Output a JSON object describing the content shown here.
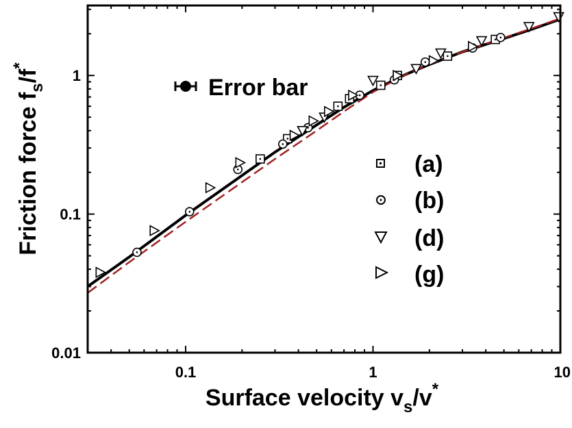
{
  "chart_data": {
    "type": "scatter",
    "x_scale": "log",
    "y_scale": "log",
    "xlim": [
      0.03,
      10
    ],
    "ylim": [
      0.01,
      3.2
    ],
    "x_ticks": [
      {
        "value": 0.1,
        "label": "0.1"
      },
      {
        "value": 1,
        "label": "1"
      },
      {
        "value": 10,
        "label": "10"
      }
    ],
    "y_ticks": [
      {
        "value": 0.01,
        "label": "0.01"
      },
      {
        "value": 0.1,
        "label": "0.1"
      },
      {
        "value": 1,
        "label": "1"
      }
    ],
    "xlabel": {
      "main": "Surface velocity v",
      "sub": "s",
      "mid": "/v",
      "sup": "*"
    },
    "ylabel": {
      "main": "Friction force f",
      "sub": "s",
      "mid": "/f",
      "sup": "*"
    },
    "annotation": {
      "text": "Error bar",
      "x": 0.1,
      "y": 1.0
    },
    "legend": {
      "placement": "right-center",
      "entries": [
        {
          "label": "(a)",
          "marker": "square"
        },
        {
          "label": "(b)",
          "marker": "circle"
        },
        {
          "label": "(d)",
          "marker": "triangle-down"
        },
        {
          "label": "(g)",
          "marker": "triangle-right"
        }
      ]
    },
    "series": [
      {
        "marker": "square",
        "points": [
          [
            0.25,
            0.25
          ],
          [
            0.35,
            0.35
          ],
          [
            0.65,
            0.6
          ],
          [
            0.75,
            0.68
          ],
          [
            1.1,
            0.85
          ],
          [
            1.35,
            1.0
          ],
          [
            2.5,
            1.38
          ],
          [
            4.5,
            1.82
          ]
        ]
      },
      {
        "marker": "circle",
        "points": [
          [
            0.055,
            0.053
          ],
          [
            0.105,
            0.104
          ],
          [
            0.19,
            0.21
          ],
          [
            0.33,
            0.32
          ],
          [
            0.45,
            0.42
          ],
          [
            0.85,
            0.72
          ],
          [
            1.3,
            0.93
          ],
          [
            1.9,
            1.25
          ],
          [
            3.4,
            1.58
          ],
          [
            4.8,
            1.88
          ]
        ]
      },
      {
        "marker": "triangle-down",
        "points": [
          [
            0.42,
            0.4
          ],
          [
            0.55,
            0.5
          ],
          [
            1.0,
            0.92
          ],
          [
            1.7,
            1.12
          ],
          [
            2.3,
            1.45
          ],
          [
            3.8,
            1.78
          ],
          [
            6.8,
            2.25
          ],
          [
            9.8,
            2.65
          ]
        ]
      },
      {
        "marker": "triangle-right",
        "points": [
          [
            0.035,
            0.038
          ],
          [
            0.068,
            0.076
          ],
          [
            0.135,
            0.155
          ],
          [
            0.195,
            0.235
          ],
          [
            0.38,
            0.37
          ],
          [
            0.48,
            0.47
          ],
          [
            0.58,
            0.55
          ],
          [
            0.78,
            0.72
          ],
          [
            1.35,
            1.0
          ],
          [
            2.1,
            1.28
          ],
          [
            3.4,
            1.62
          ]
        ]
      }
    ],
    "curves": [
      {
        "style": "solid",
        "color": "#000000",
        "points": [
          [
            0.03,
            0.03
          ],
          [
            0.05,
            0.049
          ],
          [
            0.1,
            0.098
          ],
          [
            0.2,
            0.19
          ],
          [
            0.3,
            0.28
          ],
          [
            0.5,
            0.44
          ],
          [
            0.7,
            0.59
          ],
          [
            1.0,
            0.78
          ],
          [
            1.5,
            1.02
          ],
          [
            2.0,
            1.2
          ],
          [
            3.0,
            1.48
          ],
          [
            5.0,
            1.85
          ],
          [
            7.0,
            2.15
          ],
          [
            10.0,
            2.55
          ]
        ]
      },
      {
        "style": "dashed",
        "color": "#a02020",
        "points": [
          [
            0.03,
            0.027
          ],
          [
            0.05,
            0.045
          ],
          [
            0.1,
            0.088
          ],
          [
            0.2,
            0.17
          ],
          [
            0.3,
            0.25
          ],
          [
            0.5,
            0.4
          ],
          [
            0.7,
            0.55
          ],
          [
            1.0,
            0.76
          ],
          [
            1.5,
            1.02
          ],
          [
            2.0,
            1.2
          ],
          [
            3.0,
            1.48
          ],
          [
            5.0,
            1.87
          ],
          [
            7.0,
            2.18
          ],
          [
            10.0,
            2.58
          ]
        ]
      }
    ]
  }
}
